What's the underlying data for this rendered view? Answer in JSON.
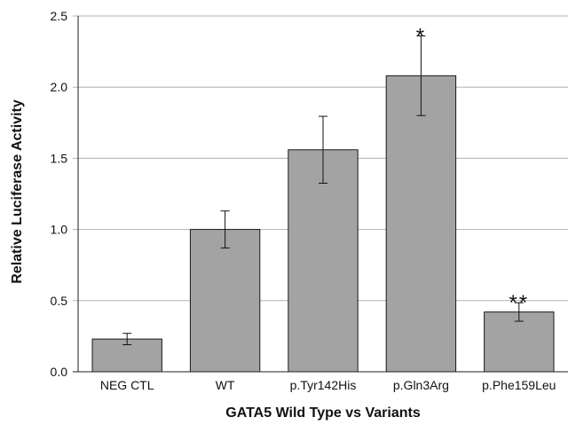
{
  "chart_data": {
    "type": "bar",
    "title": "",
    "xlabel": "GATA5 Wild Type vs Variants",
    "ylabel": "Relative Luciferase Activity",
    "categories": [
      "NEG CTL",
      "WT",
      "p.Tyr142His",
      "p.Gln3Arg",
      "p.Phe159Leu"
    ],
    "values": [
      0.23,
      1.0,
      1.56,
      2.08,
      0.42
    ],
    "error_bars": [
      0.04,
      0.13,
      0.235,
      0.28,
      0.065
    ],
    "significance": [
      "",
      "",
      "",
      "*",
      "**"
    ],
    "ylim": [
      0,
      2.5
    ],
    "yticks": [
      "0.0",
      "0.5",
      "1.0",
      "1.5",
      "2.0",
      "2.5"
    ],
    "grid": true,
    "bar_color": "#a3a3a3",
    "bar_edge_color": "#1a1a1a",
    "grid_color": "#b0b0b0"
  }
}
